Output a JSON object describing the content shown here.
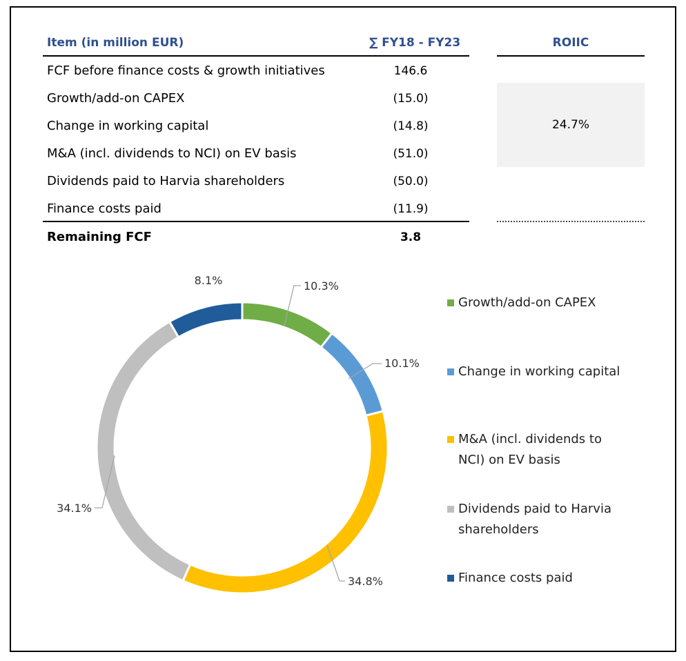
{
  "table": {
    "header_item": "Item (in million EUR)",
    "header_sum": "∑ FY18 - FY23",
    "header_roiic": "ROIIC",
    "rows": [
      {
        "label": "FCF before finance costs & growth initiatives",
        "value": "146.6"
      },
      {
        "label": "Growth/add-on CAPEX",
        "value": "(15.0)"
      },
      {
        "label": "Change in working capital",
        "value": "(14.8)"
      },
      {
        "label": "M&A (incl. dividends to NCI) on EV basis",
        "value": "(51.0)"
      },
      {
        "label": "Dividends paid to Harvia shareholders",
        "value": "(50.0)"
      },
      {
        "label": "Finance costs paid",
        "value": "(11.9)"
      }
    ],
    "total_label": "Remaining FCF",
    "total_value": "3.8",
    "roiic_value": "24.7%"
  },
  "chart_data": {
    "type": "pie",
    "subtype": "donut",
    "title": "",
    "slices": [
      {
        "name": "Growth/add-on CAPEX",
        "value": 10.3,
        "label": "10.3%",
        "color": "#70AD47"
      },
      {
        "name": "Change in working capital",
        "value": 10.1,
        "label": "10.1%",
        "color": "#5B9BD5"
      },
      {
        "name": "M&A (incl. dividends to NCI) on EV basis",
        "value": 34.8,
        "label": "34.8%",
        "color": "#FFC000"
      },
      {
        "name": "Dividends paid to Harvia shareholders",
        "value": 34.1,
        "label": "34.1%",
        "color": "#BFBFBF"
      },
      {
        "name": "Finance costs paid",
        "value": 8.1,
        "label": "8.1%",
        "color": "#1F5C99"
      }
    ],
    "legend": [
      {
        "lines": [
          "Growth/add-on CAPEX"
        ],
        "color": "#70AD47"
      },
      {
        "lines": [
          "Change in working capital"
        ],
        "color": "#5B9BD5"
      },
      {
        "lines": [
          "M&A (incl. dividends to",
          "NCI) on EV basis"
        ],
        "color": "#FFC000"
      },
      {
        "lines": [
          "Dividends paid to Harvia",
          "shareholders"
        ],
        "color": "#BFBFBF"
      },
      {
        "lines": [
          "Finance costs paid"
        ],
        "color": "#1F5C99"
      }
    ],
    "legend_position": "right"
  }
}
